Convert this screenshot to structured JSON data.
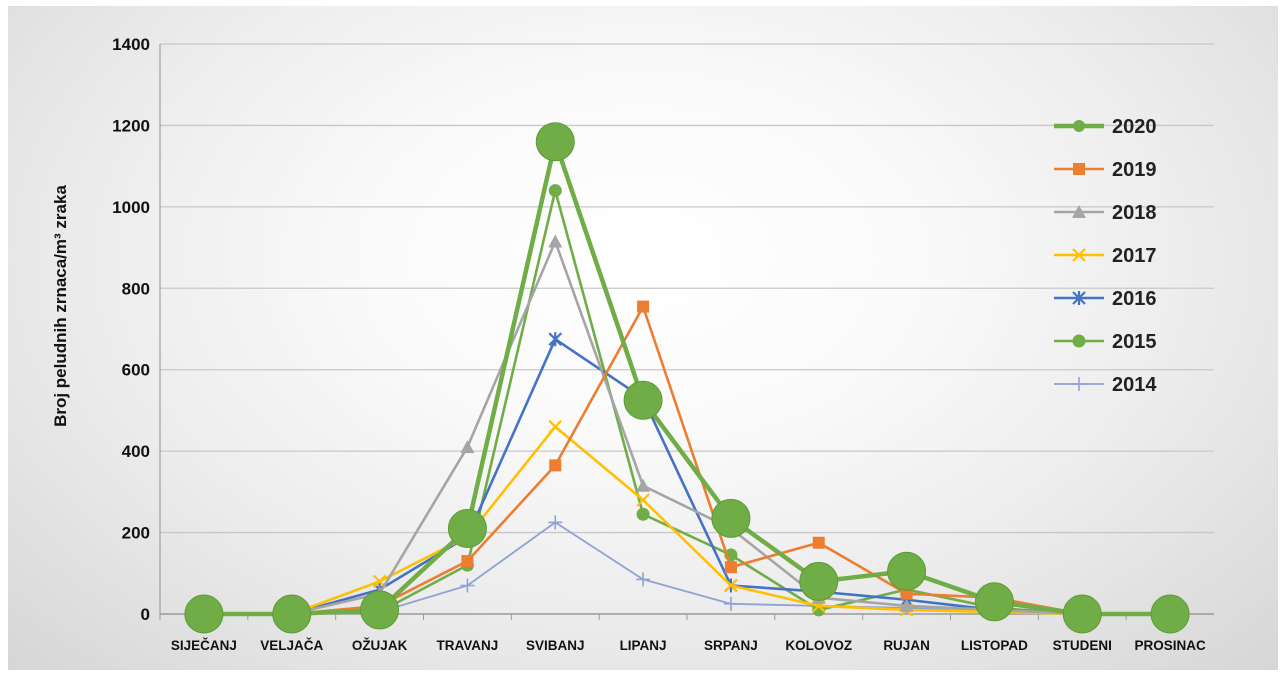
{
  "chart_data": {
    "type": "line",
    "title": "",
    "xlabel": "",
    "ylabel": "Broj peludnih zrnaca/m³ zraka",
    "ylim": [
      0,
      1400
    ],
    "yticks": [
      "0",
      "200",
      "400",
      "600",
      "800",
      "1000",
      "1200",
      "1400"
    ],
    "grid": true,
    "legend_position": "right",
    "categories": [
      "SIJEČANJ",
      "VELJAČA",
      "OŽUJAK",
      "TRAVANJ",
      "SVIBANJ",
      "LIPANJ",
      "SRPANJ",
      "KOLOVOZ",
      "RUJAN",
      "LISTOPAD",
      "STUDENI",
      "PROSINAC"
    ],
    "series": [
      {
        "name": "2020",
        "color": "#70ad47",
        "marker": "big-circle",
        "values": [
          0,
          0,
          10,
          210,
          1160,
          525,
          235,
          80,
          105,
          30,
          0,
          0
        ]
      },
      {
        "name": "2019",
        "color": "#ed7d31",
        "marker": "square",
        "values": [
          0,
          0,
          20,
          130,
          365,
          755,
          115,
          175,
          50,
          40,
          0,
          0
        ]
      },
      {
        "name": "2018",
        "color": "#a5a5a5",
        "marker": "triangle",
        "values": [
          0,
          0,
          50,
          410,
          915,
          315,
          210,
          40,
          20,
          10,
          0,
          0
        ]
      },
      {
        "name": "2017",
        "color": "#ffc000",
        "marker": "x",
        "values": [
          0,
          0,
          80,
          190,
          460,
          280,
          70,
          20,
          10,
          5,
          0,
          0
        ]
      },
      {
        "name": "2016",
        "color": "#4472c4",
        "marker": "star",
        "values": [
          0,
          0,
          60,
          190,
          675,
          530,
          70,
          55,
          35,
          10,
          0,
          0
        ]
      },
      {
        "name": "2015",
        "color": "#70ad47",
        "marker": "circle",
        "values": [
          0,
          0,
          5,
          120,
          1040,
          245,
          145,
          10,
          60,
          15,
          0,
          0
        ]
      },
      {
        "name": "2014",
        "color": "#8fa2d4",
        "marker": "plus",
        "values": [
          0,
          0,
          5,
          70,
          225,
          85,
          25,
          20,
          15,
          5,
          0,
          0
        ]
      }
    ]
  }
}
